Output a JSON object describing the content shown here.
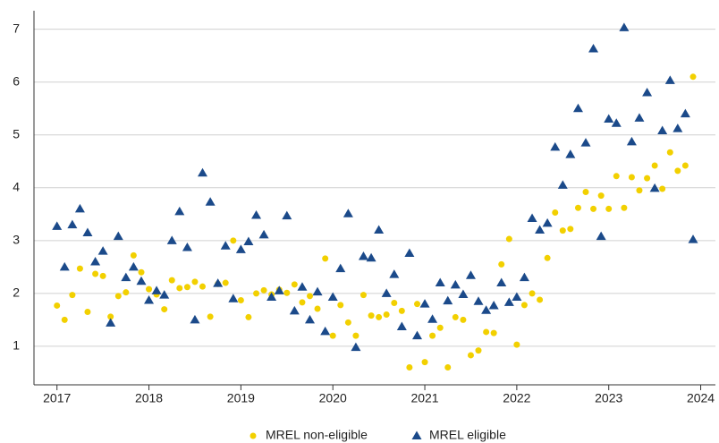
{
  "chart_data": {
    "type": "scatter",
    "x": [
      2017,
      2017.083,
      2017.167,
      2017.25,
      2017.333,
      2017.417,
      2017.5,
      2017.583,
      2017.667,
      2017.75,
      2017.833,
      2017.917,
      2018,
      2018.083,
      2018.167,
      2018.25,
      2018.333,
      2018.417,
      2018.5,
      2018.583,
      2018.667,
      2018.75,
      2018.833,
      2018.917,
      2019,
      2019.083,
      2019.167,
      2019.25,
      2019.333,
      2019.417,
      2019.5,
      2019.583,
      2019.667,
      2019.75,
      2019.833,
      2019.917,
      2020,
      2020.083,
      2020.167,
      2020.25,
      2020.333,
      2020.417,
      2020.5,
      2020.583,
      2020.667,
      2020.75,
      2020.833,
      2020.917,
      2021,
      2021.083,
      2021.167,
      2021.25,
      2021.333,
      2021.417,
      2021.5,
      2021.583,
      2021.667,
      2021.75,
      2021.833,
      2021.917,
      2022,
      2022.083,
      2022.167,
      2022.25,
      2022.333,
      2022.417,
      2022.5,
      2022.583,
      2022.667,
      2022.75,
      2022.833,
      2022.917,
      2023,
      2023.083,
      2023.167,
      2023.25,
      2023.333,
      2023.417,
      2023.5,
      2023.583,
      2023.667,
      2023.75,
      2023.833,
      2023.917
    ],
    "series": [
      {
        "name": "MREL non-eligible",
        "color": "#f2d000",
        "marker": "circle",
        "values": [
          1.77,
          1.5,
          1.97,
          2.47,
          1.65,
          2.37,
          2.33,
          1.56,
          1.95,
          2.02,
          2.72,
          2.4,
          2.08,
          1.98,
          1.7,
          2.25,
          2.1,
          2.12,
          2.22,
          2.13,
          1.56,
          2.18,
          2.2,
          3.0,
          1.87,
          1.55,
          2.0,
          2.06,
          1.98,
          2.07,
          2.01,
          2.17,
          1.83,
          1.95,
          1.71,
          2.66,
          1.2,
          1.78,
          1.45,
          1.2,
          1.97,
          1.58,
          1.55,
          1.6,
          1.82,
          1.67,
          0.6,
          1.8,
          0.7,
          1.2,
          1.35,
          0.6,
          1.55,
          1.5,
          0.83,
          0.92,
          1.27,
          1.25,
          2.55,
          3.03,
          1.03,
          1.78,
          2.0,
          1.88,
          2.67,
          3.53,
          3.19,
          3.22,
          3.62,
          3.92,
          3.6,
          3.85,
          3.6,
          4.22,
          3.62,
          4.2,
          3.95,
          4.18,
          4.42,
          3.98,
          4.67,
          4.32,
          4.42,
          6.1
        ]
      },
      {
        "name": "MREL eligible",
        "color": "#1b4a8a",
        "marker": "triangle",
        "values": [
          3.27,
          2.5,
          3.3,
          3.6,
          3.15,
          2.6,
          2.8,
          1.44,
          3.08,
          2.3,
          2.5,
          2.23,
          1.87,
          2.05,
          1.97,
          3.0,
          3.55,
          2.87,
          1.5,
          4.28,
          3.73,
          2.19,
          2.9,
          1.9,
          2.83,
          2.98,
          3.48,
          3.11,
          1.93,
          2.05,
          3.47,
          1.67,
          2.12,
          1.5,
          2.03,
          1.28,
          1.93,
          2.47,
          3.51,
          0.98,
          2.7,
          2.67,
          3.2,
          2.0,
          2.36,
          1.37,
          2.76,
          1.2,
          1.8,
          1.51,
          2.2,
          1.86,
          2.16,
          1.98,
          2.34,
          1.85,
          1.68,
          1.77,
          2.2,
          1.83,
          1.93,
          2.3,
          3.42,
          3.2,
          3.33,
          4.77,
          4.05,
          4.63,
          5.5,
          4.85,
          6.63,
          3.08,
          5.3,
          5.22,
          7.03,
          4.87,
          5.32,
          5.8,
          3.99,
          5.08,
          6.03,
          5.12,
          5.4,
          3.02
        ]
      }
    ],
    "xlim": [
      2016.75,
      2024.16
    ],
    "xticks": [
      2017,
      2018,
      2019,
      2020,
      2021,
      2022,
      2023,
      2024
    ],
    "ylim": [
      0.27,
      7.35
    ],
    "yticks": [
      1,
      2,
      3,
      4,
      5,
      6,
      7
    ],
    "grid": true,
    "legend": "bottom"
  }
}
